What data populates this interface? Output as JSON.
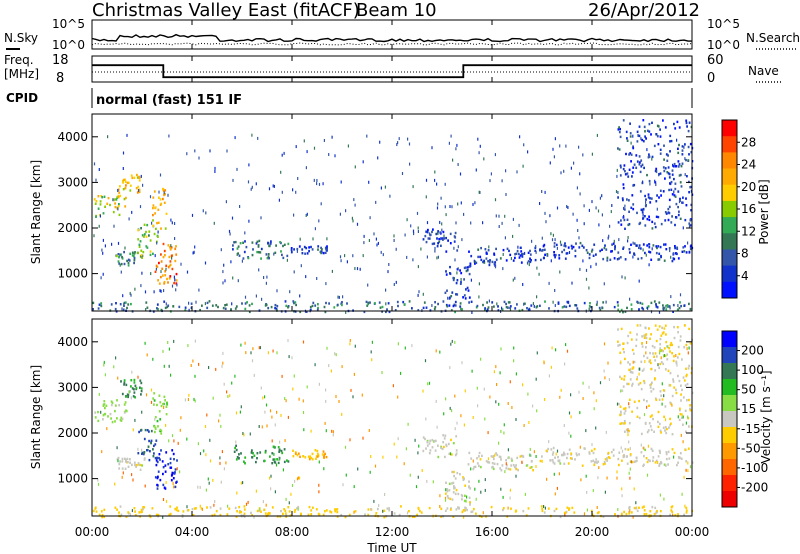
{
  "header": {
    "title": "Christmas Valley East (fitACF)",
    "beam": "Beam 10",
    "date": "26/Apr/2012"
  },
  "noise_panel": {
    "left_label": "N.Sky",
    "right_label": "N.Search",
    "ticks_left": [
      "10^5",
      "10^0"
    ],
    "ticks_right": [
      "10^5",
      "10^0"
    ]
  },
  "freq_panel": {
    "left_label_1": "Freq.",
    "left_label_2": "[MHz]",
    "right_label": "Nave",
    "ticks_left": [
      "18",
      "8"
    ],
    "ticks_right": [
      "60",
      "0"
    ]
  },
  "cpid_panel": {
    "label": "CPID",
    "text": "normal (fast) 151 IF"
  },
  "x_axis": {
    "label": "Time UT",
    "ticks": [
      "00:00",
      "04:00",
      "08:00",
      "12:00",
      "16:00",
      "20:00",
      "00:00"
    ]
  },
  "power_panel": {
    "ylabel": "Slant Range [km]",
    "yticks": [
      "4000",
      "3000",
      "2000",
      "1000"
    ],
    "colorbar_label": "Power [dB]",
    "colorbar_ticks": [
      "28",
      "24",
      "20",
      "16",
      "12",
      "8",
      "4"
    ],
    "colorbar_colors": [
      "#ff0000",
      "#ff4400",
      "#ff8800",
      "#ffaa00",
      "#ffcc00",
      "#88cc00",
      "#33aa55",
      "#337755",
      "#3355aa",
      "#1133cc",
      "#0011ff"
    ]
  },
  "velocity_panel": {
    "ylabel": "Slant Range [km]",
    "yticks": [
      "4000",
      "3000",
      "2000",
      "1000"
    ],
    "colorbar_label": "Velocity [m s⁻¹]",
    "colorbar_ticks": [
      "200",
      "100",
      "50",
      "15",
      "-15",
      "-50",
      "-100",
      "-200"
    ],
    "colorbar_colors": [
      "#0000ff",
      "#2244bb",
      "#337755",
      "#22bb22",
      "#88dd44",
      "#c8c8c0",
      "#ffcc00",
      "#ff9900",
      "#ff6600",
      "#ff2200",
      "#ee0000"
    ]
  },
  "chart_data": {
    "type": "heatmap",
    "x_range_hours": [
      0,
      24
    ],
    "y_range_km": [
      180,
      4500
    ],
    "freq_steps_mhz": [
      {
        "t": 0,
        "freq": 15
      },
      {
        "t": 2.85,
        "freq": 10
      },
      {
        "t": 14.85,
        "freq": 15
      },
      {
        "t": 24,
        "freq": 15
      }
    ],
    "features": [
      {
        "t0": 0.05,
        "t1": 1.4,
        "r0": 2250,
        "r1": 2750,
        "power": 18,
        "velocity": 40
      },
      {
        "t0": 1.0,
        "t1": 2.0,
        "r0": 2800,
        "r1": 3200,
        "power": 20,
        "velocity": 120
      },
      {
        "t0": 0.9,
        "t1": 2.1,
        "r0": 1200,
        "r1": 1500,
        "power": 10,
        "velocity": -5
      },
      {
        "t0": 1.8,
        "t1": 2.6,
        "r0": 1400,
        "r1": 2100,
        "power": 14,
        "velocity": 180
      },
      {
        "t0": 2.5,
        "t1": 3.4,
        "r0": 800,
        "r1": 1700,
        "power": 26,
        "velocity": 220
      },
      {
        "t0": 2.4,
        "t1": 3.0,
        "r0": 2000,
        "r1": 2900,
        "power": 22,
        "velocity": 60
      },
      {
        "t0": 5.6,
        "t1": 7.9,
        "r0": 1350,
        "r1": 1750,
        "power": 8,
        "velocity": 120
      },
      {
        "t0": 7.9,
        "t1": 9.4,
        "r0": 1450,
        "r1": 1650,
        "power": 4,
        "velocity": -60
      },
      {
        "t0": 13.2,
        "t1": 14.6,
        "r0": 1500,
        "r1": 2000,
        "power": 4,
        "velocity": 0
      },
      {
        "t0": 14.1,
        "t1": 15.1,
        "r0": 300,
        "r1": 1200,
        "power": 4,
        "velocity": 0
      },
      {
        "t0": 15.0,
        "t1": 18.0,
        "r0": 1200,
        "r1": 1600,
        "power": 4,
        "velocity": 0
      },
      {
        "t0": 18.0,
        "t1": 24.0,
        "r0": 1300,
        "r1": 1700,
        "power": 4,
        "velocity": -5
      },
      {
        "t0": 21.0,
        "t1": 24.0,
        "r0": 2000,
        "r1": 4400,
        "power": 4,
        "velocity": -20
      },
      {
        "t0": 0.0,
        "t1": 24.0,
        "r0": 180,
        "r1": 420,
        "power": 8,
        "velocity": -40
      }
    ]
  }
}
